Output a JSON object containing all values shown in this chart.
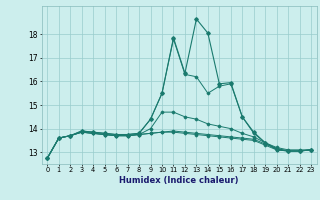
{
  "xlabel": "Humidex (Indice chaleur)",
  "background_color": "#cceeed",
  "grid_color": "#99cccc",
  "line_color": "#1a7a6e",
  "xlim": [
    -0.5,
    23.5
  ],
  "ylim": [
    12.5,
    19.2
  ],
  "yticks": [
    13,
    14,
    15,
    16,
    17,
    18
  ],
  "xticks": [
    0,
    1,
    2,
    3,
    4,
    5,
    6,
    7,
    8,
    9,
    10,
    11,
    12,
    13,
    14,
    15,
    16,
    17,
    18,
    19,
    20,
    21,
    22,
    23
  ],
  "series": [
    [
      12.75,
      13.6,
      13.7,
      13.9,
      13.85,
      13.8,
      13.75,
      13.75,
      13.8,
      14.4,
      15.5,
      17.8,
      16.3,
      16.2,
      15.5,
      15.8,
      15.9,
      14.5,
      13.8,
      13.4,
      13.1,
      13.05,
      13.05,
      13.1
    ],
    [
      12.75,
      13.6,
      13.7,
      13.85,
      13.8,
      13.75,
      13.7,
      13.7,
      13.75,
      14.0,
      14.7,
      14.7,
      14.5,
      14.4,
      14.2,
      14.1,
      14.0,
      13.8,
      13.65,
      13.4,
      13.2,
      13.1,
      13.1,
      13.1
    ],
    [
      12.75,
      13.6,
      13.7,
      13.85,
      13.8,
      13.75,
      13.7,
      13.7,
      13.75,
      13.8,
      13.85,
      13.9,
      13.85,
      13.8,
      13.75,
      13.7,
      13.65,
      13.6,
      13.55,
      13.35,
      13.15,
      13.05,
      13.05,
      13.1
    ],
    [
      12.75,
      13.6,
      13.7,
      13.85,
      13.8,
      13.75,
      13.7,
      13.7,
      13.75,
      13.8,
      13.85,
      13.85,
      13.8,
      13.75,
      13.7,
      13.65,
      13.6,
      13.55,
      13.5,
      13.3,
      13.1,
      13.05,
      13.05,
      13.1
    ]
  ],
  "main_series": [
    12.75,
    13.6,
    13.7,
    13.9,
    13.85,
    13.8,
    13.75,
    13.75,
    13.8,
    14.4,
    15.5,
    17.85,
    16.35,
    18.65,
    18.05,
    15.9,
    15.95,
    14.5,
    13.85,
    13.4,
    13.15,
    13.05,
    13.05,
    13.1
  ]
}
